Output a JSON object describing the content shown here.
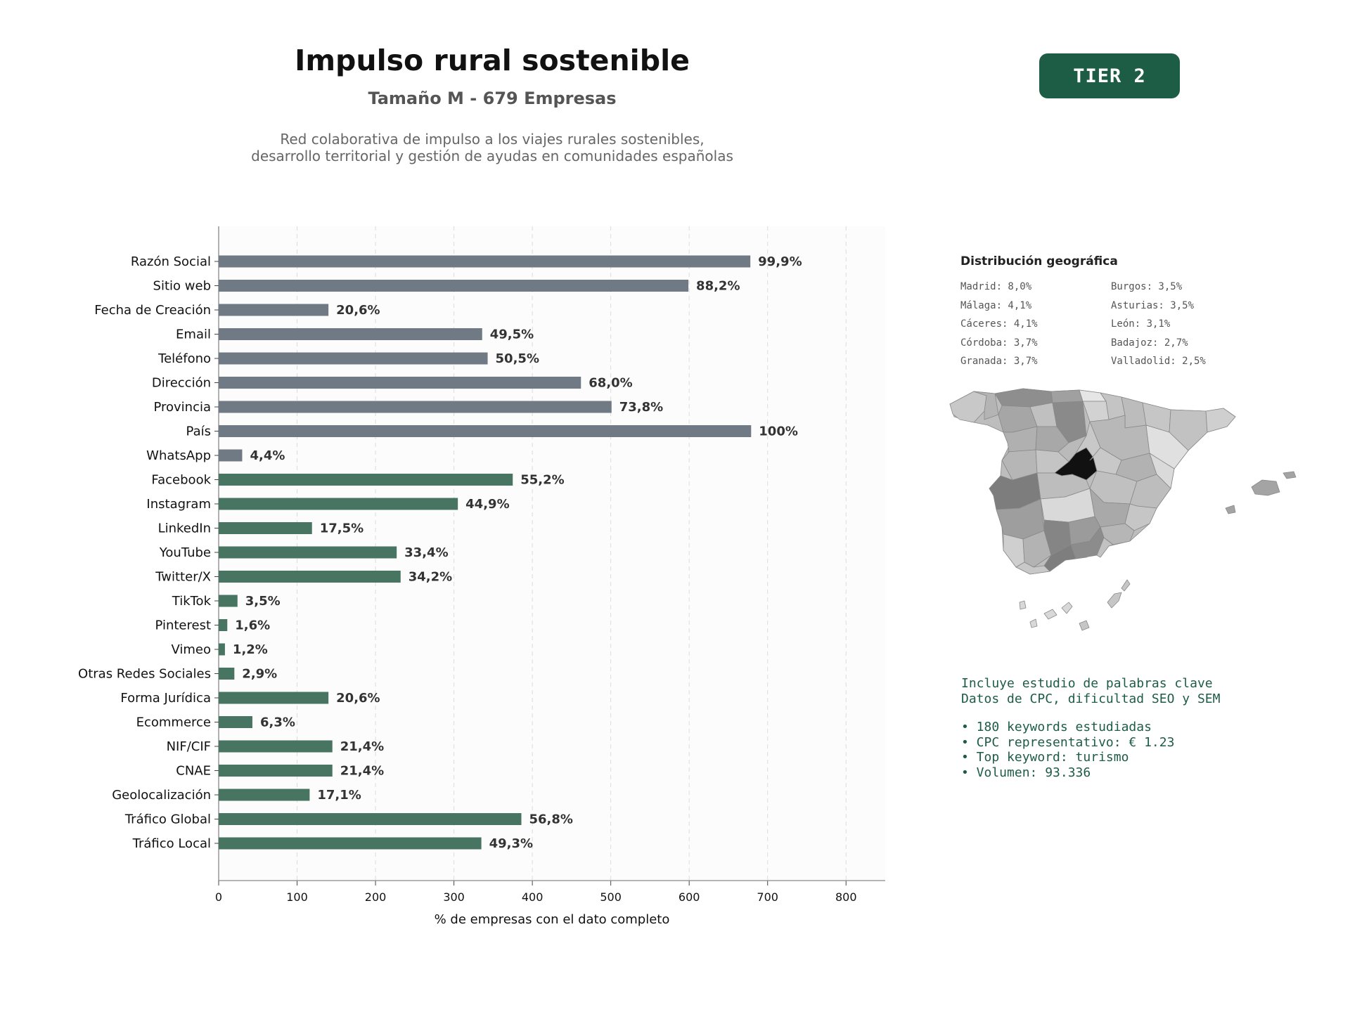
{
  "header": {
    "title": "Impulso rural sostenible",
    "subtitle": "Tamaño M - 679 Empresas",
    "description_line1": "Red colaborativa de impulso a los viajes rurales sostenibles,",
    "description_line2": "desarrollo territorial y gestión de ayudas en comunidades españolas",
    "tier_badge": "TIER 2"
  },
  "chart_data": {
    "type": "bar",
    "orientation": "horizontal",
    "xlabel": "% de empresas con el dato completo",
    "xlim": [
      0,
      850
    ],
    "xticks": [
      0,
      100,
      200,
      300,
      400,
      500,
      600,
      700,
      800
    ],
    "grid": "vertical dashed",
    "colors": {
      "contact": "#6f7a85",
      "digital": "#477561"
    },
    "categories": [
      "Razón Social",
      "Sitio web",
      "Fecha de Creación",
      "Email",
      "Teléfono",
      "Dirección",
      "Provincia",
      "País",
      "WhatsApp",
      "Facebook",
      "Instagram",
      "LinkedIn",
      "YouTube",
      "Twitter/X",
      "TikTok",
      "Pinterest",
      "Vimeo",
      "Otras Redes Sociales",
      "Forma Jurídica",
      "Ecommerce",
      "NIF/CIF",
      "CNAE",
      "Geolocalización",
      "Tráfico Global",
      "Tráfico Local"
    ],
    "values": [
      678,
      599,
      140,
      336,
      343,
      462,
      501,
      679,
      30,
      375,
      305,
      119,
      227,
      232,
      24,
      11,
      8,
      20,
      140,
      43,
      145,
      145,
      116,
      386,
      335
    ],
    "labels": [
      "99,9%",
      "88,2%",
      "20,6%",
      "49,5%",
      "50,5%",
      "68,0%",
      "73,8%",
      "100%",
      "4,4%",
      "55,2%",
      "44,9%",
      "17,5%",
      "33,4%",
      "34,2%",
      "3,5%",
      "1,6%",
      "1,2%",
      "2,9%",
      "20,6%",
      "6,3%",
      "21,4%",
      "21,4%",
      "17,1%",
      "56,8%",
      "49,3%"
    ],
    "group": [
      "contact",
      "contact",
      "contact",
      "contact",
      "contact",
      "contact",
      "contact",
      "contact",
      "contact",
      "digital",
      "digital",
      "digital",
      "digital",
      "digital",
      "digital",
      "digital",
      "digital",
      "digital",
      "digital",
      "digital",
      "digital",
      "digital",
      "digital",
      "digital",
      "digital"
    ]
  },
  "geo": {
    "title": "Distribución geográfica",
    "col1": [
      "Madrid: 8,0%",
      "Málaga: 4,1%",
      "Cáceres: 4,1%",
      "Córdoba: 3,7%",
      "Granada: 3,7%"
    ],
    "col2": [
      "Burgos: 3,5%",
      "Asturias: 3,5%",
      "León: 3,1%",
      "Badajoz: 2,7%",
      "Valladolid: 2,5%"
    ]
  },
  "keywords": {
    "line1": "Incluye estudio de palabras clave",
    "line2": "Datos de CPC, dificultad SEO y SEM",
    "bullets": [
      "• 180 keywords estudiadas",
      "• CPC representativo: € 1.23",
      "• Top keyword: turismo",
      "• Volumen: 93.336"
    ]
  }
}
